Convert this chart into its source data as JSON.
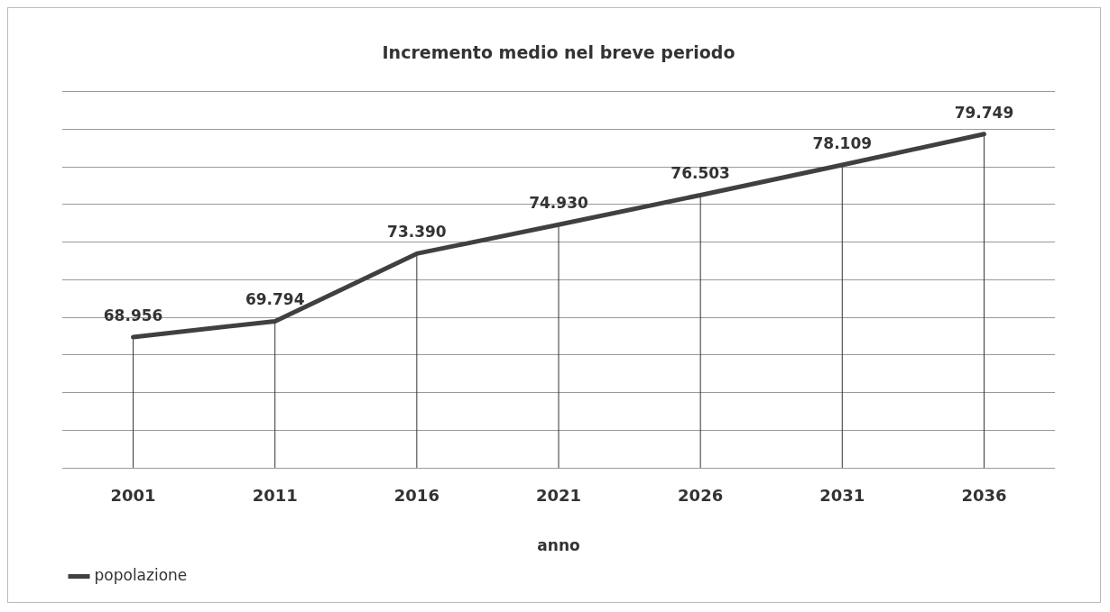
{
  "chart_data": {
    "type": "line",
    "title": "Incremento medio nel breve periodo",
    "xlabel": "anno",
    "categories": [
      "2001",
      "2011",
      "2016",
      "2021",
      "2026",
      "2031",
      "2036"
    ],
    "series": [
      {
        "name": "popolazione",
        "color": "#404040",
        "values": [
          68956,
          69794,
          73390,
          74930,
          76503,
          78109,
          79749
        ],
        "value_labels": [
          "68.956",
          "69.794",
          "73.390",
          "74.930",
          "76.503",
          "78.109",
          "79.749"
        ]
      }
    ],
    "ylim": [
      62000,
      82000
    ],
    "yticks": [
      {
        "value": 62000,
        "label": null
      },
      {
        "value": 64000,
        "label": null
      },
      {
        "value": 66000,
        "label": null
      },
      {
        "value": 68000,
        "label": null
      },
      {
        "value": 70000,
        "label": null
      },
      {
        "value": 72000,
        "label": null
      },
      {
        "value": 74000,
        "label": null
      },
      {
        "value": 76000,
        "label": null
      },
      {
        "value": 78000,
        "label": null
      },
      {
        "value": 80000,
        "label": null
      },
      {
        "value": 82000,
        "label": null
      }
    ],
    "tick_labels": "x",
    "grid": true,
    "legend": "bottom left",
    "marker": "none",
    "line_style": "solid"
  }
}
